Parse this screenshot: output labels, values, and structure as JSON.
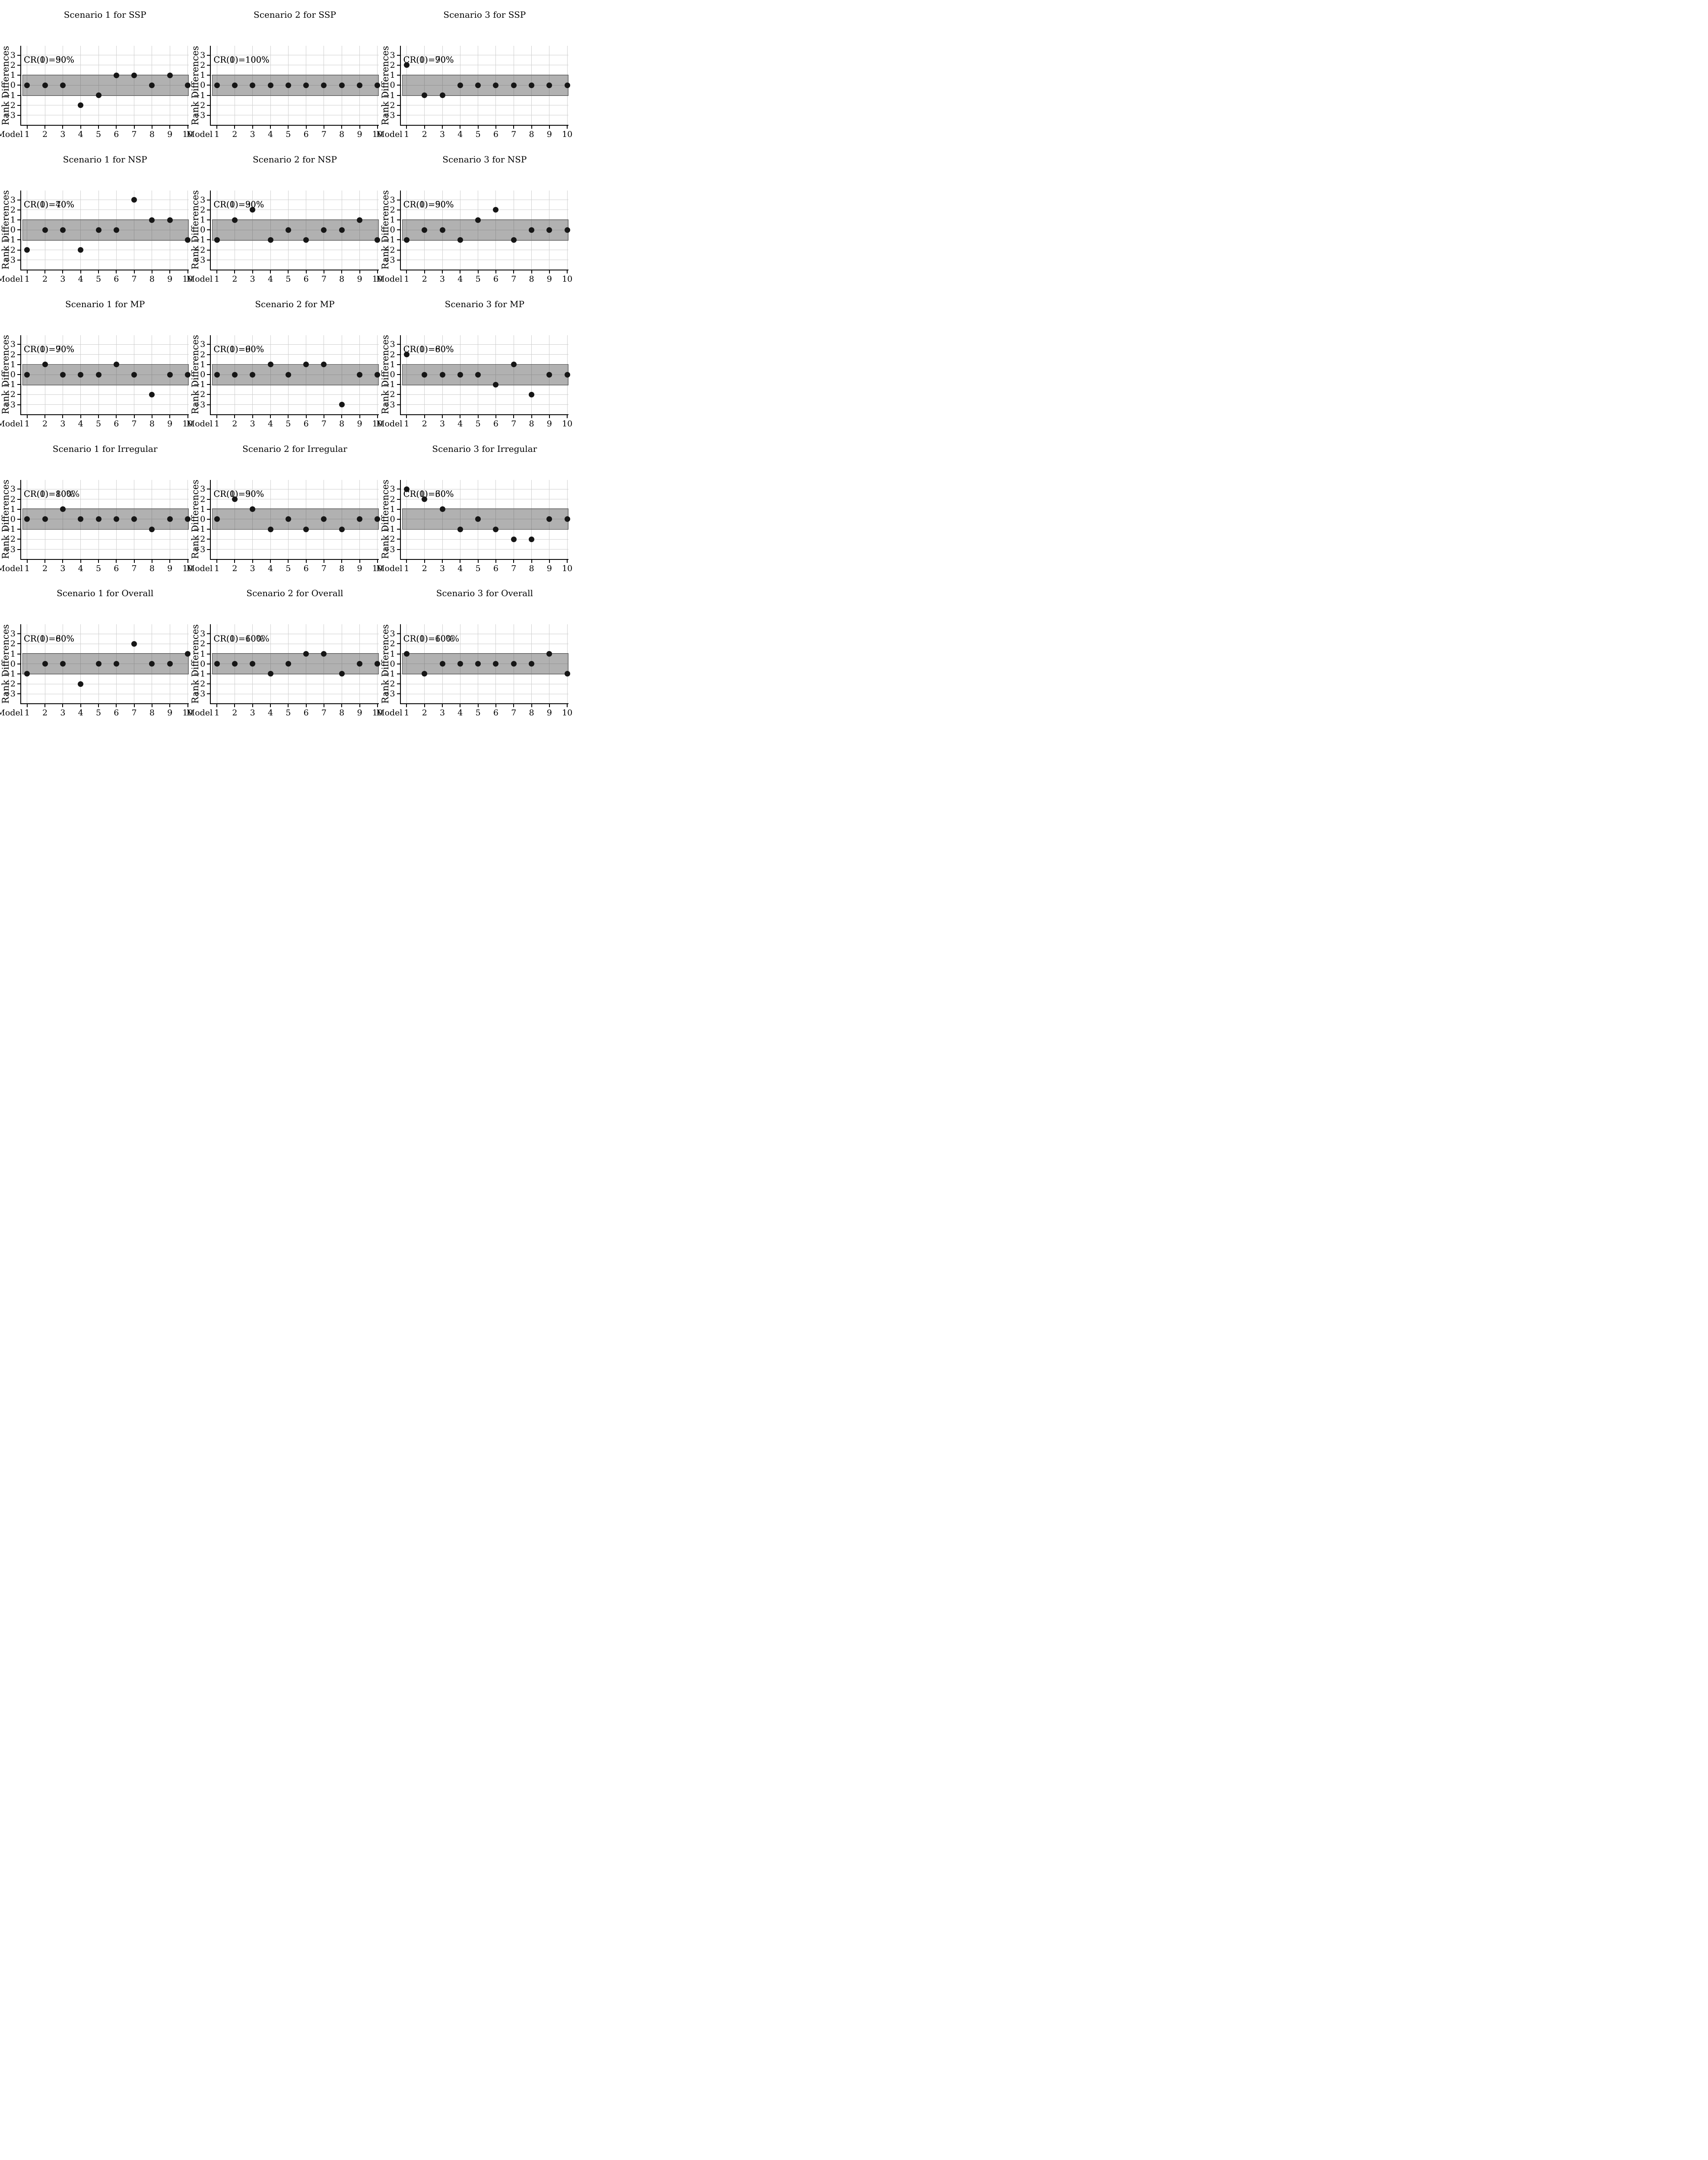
{
  "figure": {
    "ylabel": "Rank Differences",
    "xlabel": "Model",
    "models": [
      1,
      2,
      3,
      4,
      5,
      6,
      7,
      8,
      9,
      10
    ],
    "yticks": [
      3,
      2,
      1,
      0,
      -1,
      -2,
      -3
    ],
    "band": [
      -1,
      1
    ],
    "ylim": [
      -3.95,
      3.95
    ],
    "grid": true,
    "rows": [
      "SSP",
      "NSP",
      "MP",
      "Irregular",
      "Overall"
    ],
    "columns": [
      "Scenario 1",
      "Scenario 2",
      "Scenario 3"
    ]
  },
  "colors": {
    "background": "#ffffff",
    "band_fill": "#b5b3b3",
    "band_border": "#4a4a4a",
    "gridline": "#cfcfcf",
    "axis": "#000000",
    "dot": "#161616",
    "text": "#000000"
  },
  "chart_data": [
    {
      "type": "scatter",
      "title": "Scenario 1 for SSP",
      "xlabel": "Model",
      "ylabel": "Rank Differences",
      "x": [
        1,
        2,
        3,
        4,
        5,
        6,
        7,
        8,
        9,
        10
      ],
      "values": [
        0,
        0,
        0,
        -2,
        -1,
        1,
        1,
        0,
        1,
        0
      ],
      "cr0": "CR(0)=50%",
      "cr1": "CR(1)=90%",
      "band": [
        -1,
        1
      ],
      "yticks": [
        3,
        2,
        1,
        0,
        -1,
        -2,
        -3
      ],
      "ylim": [
        -3.95,
        3.95
      ],
      "grid": true
    },
    {
      "type": "scatter",
      "title": "Scenario 2 for SSP",
      "xlabel": "Model",
      "ylabel": "Rank Differences",
      "x": [
        1,
        2,
        3,
        4,
        5,
        6,
        7,
        8,
        9,
        10
      ],
      "values": [
        0,
        0,
        0,
        0,
        0,
        0,
        0,
        0,
        0,
        0
      ],
      "cr0": "CR(0)=100%",
      "cr1": "CR(1)=100%",
      "band": [
        -1,
        1
      ],
      "yticks": [
        3,
        2,
        1,
        0,
        -1,
        -2,
        -3
      ],
      "ylim": [
        -3.95,
        3.95
      ],
      "grid": true
    },
    {
      "type": "scatter",
      "title": "Scenario 3 for SSP",
      "xlabel": "Model",
      "ylabel": "Rank Differences",
      "x": [
        1,
        2,
        3,
        4,
        5,
        6,
        7,
        8,
        9,
        10
      ],
      "values": [
        2,
        -1,
        -1,
        0,
        0,
        0,
        0,
        0,
        0,
        0
      ],
      "cr0": "CR(0)=70%",
      "cr1": "CR(1)=90%",
      "band": [
        -1,
        1
      ],
      "yticks": [
        3,
        2,
        1,
        0,
        -1,
        -2,
        -3
      ],
      "ylim": [
        -3.95,
        3.95
      ],
      "grid": true
    },
    {
      "type": "scatter",
      "title": "Scenario 1 for NSP",
      "xlabel": "Model",
      "ylabel": "Rank Differences",
      "x": [
        1,
        2,
        3,
        4,
        5,
        6,
        7,
        8,
        9,
        10
      ],
      "values": [
        -2,
        0,
        0,
        -2,
        0,
        0,
        3,
        1,
        1,
        -1
      ],
      "cr0": "CR(0)=40%",
      "cr1": "CR(1)=70%",
      "band": [
        -1,
        1
      ],
      "yticks": [
        3,
        2,
        1,
        0,
        -1,
        -2,
        -3
      ],
      "ylim": [
        -3.95,
        3.95
      ],
      "grid": true
    },
    {
      "type": "scatter",
      "title": "Scenario 2 for NSP",
      "xlabel": "Model",
      "ylabel": "Rank Differences",
      "x": [
        1,
        2,
        3,
        4,
        5,
        6,
        7,
        8,
        9,
        10
      ],
      "values": [
        -1,
        1,
        2,
        -1,
        0,
        -1,
        0,
        0,
        1,
        -1
      ],
      "cr0": "CR(0)=30%",
      "cr1": "CR(1)=90%",
      "band": [
        -1,
        1
      ],
      "yticks": [
        3,
        2,
        1,
        0,
        -1,
        -2,
        -3
      ],
      "ylim": [
        -3.95,
        3.95
      ],
      "grid": true
    },
    {
      "type": "scatter",
      "title": "Scenario 3 for NSP",
      "xlabel": "Model",
      "ylabel": "Rank Differences",
      "x": [
        1,
        2,
        3,
        4,
        5,
        6,
        7,
        8,
        9,
        10
      ],
      "values": [
        -1,
        0,
        0,
        -1,
        1,
        2,
        -1,
        0,
        0,
        0
      ],
      "cr0": "CR(0)=50%",
      "cr1": "CR(1)=90%",
      "band": [
        -1,
        1
      ],
      "yticks": [
        3,
        2,
        1,
        0,
        -1,
        -2,
        -3
      ],
      "ylim": [
        -3.95,
        3.95
      ],
      "grid": true
    },
    {
      "type": "scatter",
      "title": "Scenario 1 for MP",
      "xlabel": "Model",
      "ylabel": "Rank Differences",
      "x": [
        1,
        2,
        3,
        4,
        5,
        6,
        7,
        8,
        9,
        10
      ],
      "values": [
        0,
        1,
        0,
        0,
        0,
        1,
        0,
        -2,
        0,
        0
      ],
      "cr0": "CR(0)=70%",
      "cr1": "CR(1)=90%",
      "band": [
        -1,
        1
      ],
      "yticks": [
        3,
        2,
        1,
        0,
        -1,
        -2,
        -3
      ],
      "ylim": [
        -3.95,
        3.95
      ],
      "grid": true
    },
    {
      "type": "scatter",
      "title": "Scenario 2 for MP",
      "xlabel": "Model",
      "ylabel": "Rank Differences",
      "x": [
        1,
        2,
        3,
        4,
        5,
        6,
        7,
        8,
        9,
        10
      ],
      "values": [
        0,
        0,
        0,
        1,
        0,
        1,
        1,
        -3,
        0,
        0
      ],
      "cr0": "CR(0)=60%",
      "cr1": "CR(1)=90%",
      "band": [
        -1,
        1
      ],
      "yticks": [
        3,
        2,
        1,
        0,
        -1,
        -2,
        -3
      ],
      "ylim": [
        -3.95,
        3.95
      ],
      "grid": true
    },
    {
      "type": "scatter",
      "title": "Scenario 3 for MP",
      "xlabel": "Model",
      "ylabel": "Rank Differences",
      "x": [
        1,
        2,
        3,
        4,
        5,
        6,
        7,
        8,
        9,
        10
      ],
      "values": [
        2,
        0,
        0,
        0,
        0,
        -1,
        1,
        -2,
        0,
        0
      ],
      "cr0": "CR(0)=60%",
      "cr1": "CR(1)=80%",
      "band": [
        -1,
        1
      ],
      "yticks": [
        3,
        2,
        1,
        0,
        -1,
        -2,
        -3
      ],
      "ylim": [
        -3.95,
        3.95
      ],
      "grid": true
    },
    {
      "type": "scatter",
      "title": "Scenario 1 for Irregular",
      "xlabel": "Model",
      "ylabel": "Rank Differences",
      "x": [
        1,
        2,
        3,
        4,
        5,
        6,
        7,
        8,
        9,
        10
      ],
      "values": [
        0,
        0,
        1,
        0,
        0,
        0,
        0,
        -1,
        0,
        0
      ],
      "cr0": "CR(0)=80%",
      "cr1": "CR(1)=100%",
      "band": [
        -1,
        1
      ],
      "yticks": [
        3,
        2,
        1,
        0,
        -1,
        -2,
        -3
      ],
      "ylim": [
        -3.95,
        3.95
      ],
      "grid": true
    },
    {
      "type": "scatter",
      "title": "Scenario 2 for Irregular",
      "xlabel": "Model",
      "ylabel": "Rank Differences",
      "x": [
        1,
        2,
        3,
        4,
        5,
        6,
        7,
        8,
        9,
        10
      ],
      "values": [
        0,
        2,
        1,
        -1,
        0,
        -1,
        0,
        -1,
        0,
        0
      ],
      "cr0": "CR(0)=50%",
      "cr1": "CR(1)=90%",
      "band": [
        -1,
        1
      ],
      "yticks": [
        3,
        2,
        1,
        0,
        -1,
        -2,
        -3
      ],
      "ylim": [
        -3.95,
        3.95
      ],
      "grid": true
    },
    {
      "type": "scatter",
      "title": "Scenario 3 for Irregular",
      "xlabel": "Model",
      "ylabel": "Rank Differences",
      "x": [
        1,
        2,
        3,
        4,
        5,
        6,
        7,
        8,
        9,
        10
      ],
      "values": [
        3,
        2,
        1,
        -1,
        0,
        -1,
        -2,
        -2,
        0,
        0
      ],
      "cr0": "CR(0)=30%",
      "cr1": "CR(1)=60%",
      "band": [
        -1,
        1
      ],
      "yticks": [
        3,
        2,
        1,
        0,
        -1,
        -2,
        -3
      ],
      "ylim": [
        -3.95,
        3.95
      ],
      "grid": true
    },
    {
      "type": "scatter",
      "title": "Scenario 1 for Overall",
      "xlabel": "Model",
      "ylabel": "Rank Differences",
      "x": [
        1,
        2,
        3,
        4,
        5,
        6,
        7,
        8,
        9,
        10
      ],
      "values": [
        -1,
        0,
        0,
        -2,
        0,
        0,
        2,
        0,
        0,
        1
      ],
      "cr0": "CR(0)=60%",
      "cr1": "CR(1)=80%",
      "band": [
        -1,
        1
      ],
      "yticks": [
        3,
        2,
        1,
        0,
        -1,
        -2,
        -3
      ],
      "ylim": [
        -3.95,
        3.95
      ],
      "grid": true
    },
    {
      "type": "scatter",
      "title": "Scenario 2 for Overall",
      "xlabel": "Model",
      "ylabel": "Rank Differences",
      "x": [
        1,
        2,
        3,
        4,
        5,
        6,
        7,
        8,
        9,
        10
      ],
      "values": [
        0,
        0,
        0,
        -1,
        0,
        1,
        1,
        -1,
        0,
        0
      ],
      "cr0": "CR(0)=60%",
      "cr1": "CR(1)=100%",
      "band": [
        -1,
        1
      ],
      "yticks": [
        3,
        2,
        1,
        0,
        -1,
        -2,
        -3
      ],
      "ylim": [
        -3.95,
        3.95
      ],
      "grid": true
    },
    {
      "type": "scatter",
      "title": "Scenario 3 for Overall",
      "xlabel": "Model",
      "ylabel": "Rank Differences",
      "x": [
        1,
        2,
        3,
        4,
        5,
        6,
        7,
        8,
        9,
        10
      ],
      "values": [
        1,
        -1,
        0,
        0,
        0,
        0,
        0,
        0,
        1,
        -1
      ],
      "cr0": "CR(0)=60%",
      "cr1": "CR(1)=100%",
      "band": [
        -1,
        1
      ],
      "yticks": [
        3,
        2,
        1,
        0,
        -1,
        -2,
        -3
      ],
      "ylim": [
        -3.95,
        3.95
      ],
      "grid": true
    }
  ]
}
